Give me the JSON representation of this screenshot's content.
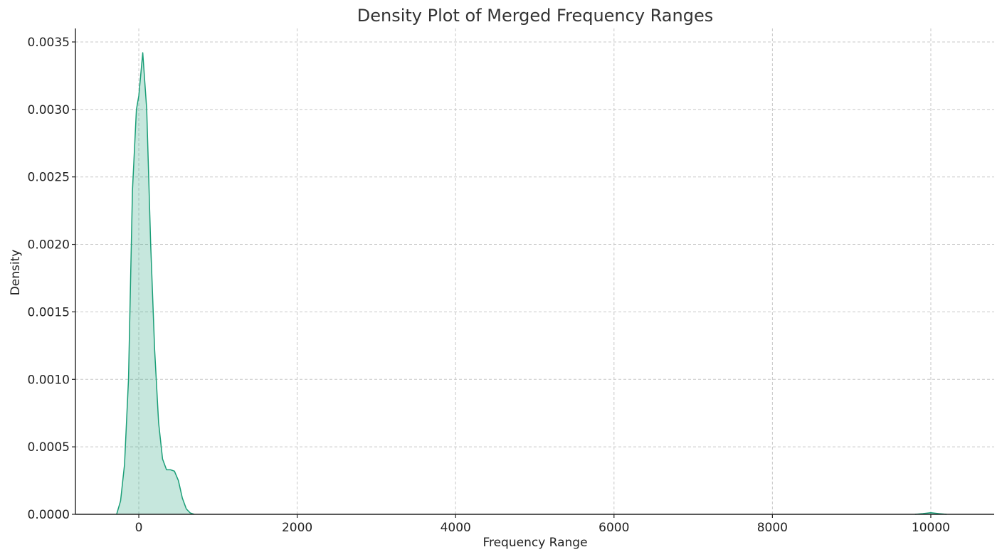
{
  "chart_data": {
    "type": "area",
    "title": "Density Plot of Merged Frequency Ranges",
    "xlabel": "Frequency Range",
    "ylabel": "Density",
    "xlim": [
      -800,
      10800
    ],
    "ylim": [
      0,
      0.0036
    ],
    "xticks": [
      0,
      2000,
      4000,
      6000,
      8000,
      10000
    ],
    "yticks": [
      0.0,
      0.0005,
      0.001,
      0.0015,
      0.002,
      0.0025,
      0.003,
      0.0035
    ],
    "xtick_labels": [
      "0",
      "2000",
      "4000",
      "6000",
      "8000",
      "10000"
    ],
    "ytick_labels": [
      "0.0000",
      "0.0005",
      "0.0010",
      "0.0015",
      "0.0020",
      "0.0025",
      "0.0030",
      "0.0035"
    ],
    "grid": true,
    "colors": {
      "line": "#1a9e77",
      "fill": "#1a9e77",
      "fill_opacity": 0.25
    },
    "series": [
      {
        "x": [
          -280,
          -230,
          -180,
          -130,
          -80,
          -30,
          0,
          50,
          100,
          150,
          200,
          250,
          300,
          350,
          400,
          450,
          500,
          550,
          600,
          650,
          700
        ],
        "values": [
          0.0,
          0.0001,
          0.00037,
          0.001,
          0.0024,
          0.003,
          0.0031,
          0.00342,
          0.003,
          0.002,
          0.00122,
          0.00068,
          0.00041,
          0.00033,
          0.00033,
          0.00032,
          0.00025,
          0.00012,
          4e-05,
          1e-05,
          0.0
        ]
      },
      {
        "x": [
          9800,
          9900,
          10000,
          10100,
          10200
        ],
        "values": [
          0.0,
          5e-06,
          1.2e-05,
          5e-06,
          0.0
        ]
      }
    ]
  }
}
